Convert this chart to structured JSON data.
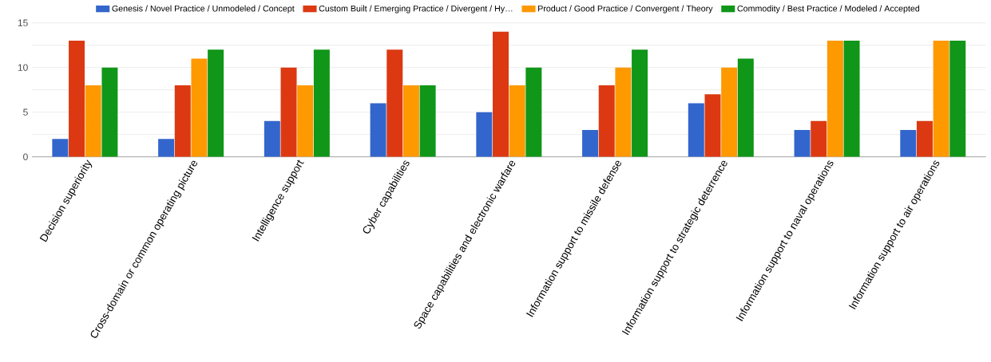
{
  "chart_data": {
    "type": "bar",
    "categories": [
      "Decision superiority",
      "Cross-domain or common operating picture",
      "Intelligence support",
      "Cyber capabilities",
      "Space capabilities and electronic warfare",
      "Information support to missile defense",
      "Information support to strategic deterrence",
      "Information support to naval operations",
      "Information support to air operations"
    ],
    "series": [
      {
        "name": "Genesis / Novel Practice / Unmodeled / Concept",
        "color": "#3366cc",
        "values": [
          2,
          2,
          4,
          6,
          5,
          3,
          6,
          3,
          3
        ]
      },
      {
        "name": "Custom Built / Emerging Practice / Divergent / Hy…",
        "color": "#dc3912",
        "values": [
          13,
          8,
          10,
          12,
          14,
          8,
          7,
          4,
          4
        ]
      },
      {
        "name": "Product / Good Practice / Convergent / Theory",
        "color": "#ff9900",
        "values": [
          8,
          11,
          8,
          8,
          8,
          10,
          10,
          13,
          13
        ]
      },
      {
        "name": "Commodity / Best Practice / Modeled / Accepted",
        "color": "#109618",
        "values": [
          10,
          12,
          12,
          8,
          10,
          12,
          11,
          13,
          13
        ]
      }
    ],
    "ylim": [
      0,
      15
    ],
    "yticks": [
      0,
      {
        "value": 2.5,
        "label": null
      },
      5,
      {
        "value": 7.5,
        "label": null
      },
      10,
      {
        "value": 12.5,
        "label": null
      },
      15
    ],
    "grid": "y",
    "legend": "top"
  }
}
